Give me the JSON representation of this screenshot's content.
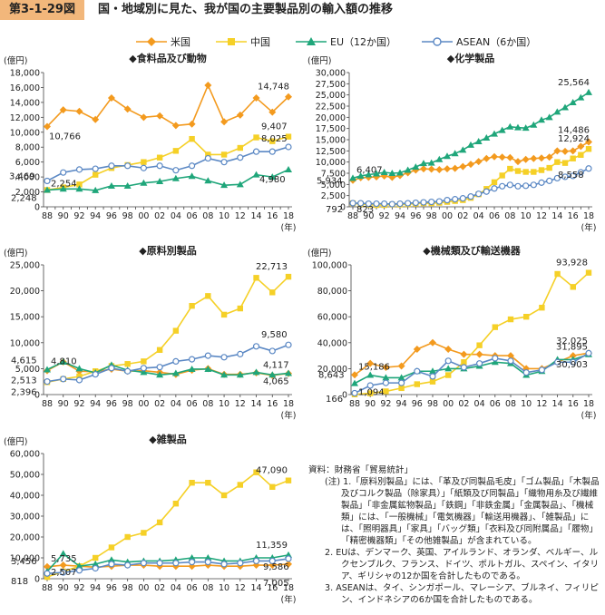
{
  "figure": {
    "number": "第3-1-29図",
    "title": "国・地域別に見た、我が国の主要製品別の輸入額の推移"
  },
  "legend": [
    {
      "name": "米国",
      "color": "#f39a1e",
      "marker": "diamond"
    },
    {
      "name": "中国",
      "color": "#f5d027",
      "marker": "square"
    },
    {
      "name": "EU（12か国）",
      "color": "#1fa67a",
      "marker": "triangle"
    },
    {
      "name": "ASEAN（6か国）",
      "color": "#5b88c4",
      "marker": "circle"
    }
  ],
  "chart_data": [
    {
      "type": "line",
      "title": "◆食料品及び動物",
      "ylabel": "(億円)",
      "xlabel": "(年)",
      "categories": [
        "88",
        "89",
        "90",
        "91",
        "92",
        "93",
        "94",
        "95",
        "96",
        "97",
        "98",
        "99",
        "00",
        "01",
        "02",
        "03",
        "04",
        "05",
        "06",
        "07",
        "08",
        "09",
        "10",
        "11",
        "12",
        "13",
        "14",
        "15",
        "16",
        "17",
        "18"
      ],
      "tick_labels": [
        "88",
        "90",
        "92",
        "94",
        "96",
        "98",
        "00",
        "02",
        "04",
        "06",
        "08",
        "10",
        "12",
        "14",
        "16",
        "18"
      ],
      "ylim": [
        0,
        18000
      ],
      "yticks": [
        0,
        2000,
        4000,
        6000,
        8000,
        10000,
        12000,
        14000,
        16000,
        18000
      ],
      "series": [
        {
          "name": "米国",
          "values": [
            10766,
            null,
            13000,
            null,
            12800,
            null,
            11700,
            null,
            14600,
            null,
            13100,
            null,
            12000,
            null,
            12200,
            null,
            10900,
            null,
            11100,
            null,
            16300,
            null,
            11400,
            null,
            12300,
            null,
            14600,
            null,
            12700,
            null,
            14748
          ]
        },
        {
          "name": "中国",
          "values": [
            2254,
            null,
            2600,
            null,
            3000,
            null,
            4300,
            null,
            5200,
            null,
            5600,
            null,
            6000,
            null,
            6600,
            null,
            7500,
            null,
            9100,
            null,
            7000,
            null,
            7000,
            null,
            7900,
            null,
            9300,
            null,
            8800,
            null,
            9407
          ]
        },
        {
          "name": "EU（12か国）",
          "values": [
            2248,
            null,
            2400,
            null,
            2400,
            null,
            2200,
            null,
            2800,
            null,
            2800,
            null,
            3200,
            null,
            3400,
            null,
            3800,
            null,
            4100,
            null,
            3500,
            null,
            2900,
            null,
            3000,
            null,
            4300,
            null,
            4000,
            null,
            4980
          ]
        },
        {
          "name": "ASEAN（6か国）",
          "values": [
            3469,
            null,
            4600,
            null,
            5000,
            null,
            5100,
            null,
            5500,
            null,
            5500,
            null,
            5200,
            null,
            5500,
            null,
            4900,
            null,
            5500,
            null,
            6500,
            null,
            6000,
            null,
            6600,
            null,
            7400,
            null,
            7400,
            null,
            8025
          ]
        }
      ],
      "labels": [
        {
          "text": "10,766",
          "series": 0,
          "idx": 0
        },
        {
          "text": "14,748",
          "series": 0,
          "idx": 30
        },
        {
          "text": "9,407",
          "series": 1,
          "idx": 30
        },
        {
          "text": "2,254",
          "series": 1,
          "idx": 0
        },
        {
          "text": "3,469",
          "series": 3,
          "idx": 0
        },
        {
          "text": "2,248",
          "series": 2,
          "idx": 0
        },
        {
          "text": "8,025",
          "series": 3,
          "idx": 30
        },
        {
          "text": "4,980",
          "series": 2,
          "idx": 30
        }
      ]
    },
    {
      "type": "line",
      "title": "◆化学製品",
      "ylabel": "(億円)",
      "xlabel": "(年)",
      "categories": [
        "88",
        "89",
        "90",
        "91",
        "92",
        "93",
        "94",
        "95",
        "96",
        "97",
        "98",
        "99",
        "00",
        "01",
        "02",
        "03",
        "04",
        "05",
        "06",
        "07",
        "08",
        "09",
        "10",
        "11",
        "12",
        "13",
        "14",
        "15",
        "16",
        "17",
        "18"
      ],
      "tick_labels": [
        "88",
        "90",
        "92",
        "94",
        "96",
        "98",
        "00",
        "02",
        "04",
        "06",
        "08",
        "10",
        "12",
        "14",
        "16",
        "18"
      ],
      "ylim": [
        0,
        30000
      ],
      "yticks": [
        0,
        2500,
        5000,
        7500,
        10000,
        12500,
        15000,
        17500,
        20000,
        22500,
        25000,
        27500,
        30000
      ],
      "series": [
        {
          "name": "米国",
          "values": [
            5934,
            6500,
            6600,
            6700,
            6900,
            6600,
            7000,
            7600,
            8200,
            8500,
            8400,
            8300,
            8500,
            8600,
            9000,
            9500,
            10100,
            10800,
            11200,
            11100,
            11000,
            10100,
            10600,
            10800,
            10900,
            11100,
            12500,
            12400,
            12500,
            13500,
            14486
          ]
        },
        {
          "name": "中国",
          "values": [
            792,
            600,
            500,
            400,
            400,
            500,
            500,
            600,
            700,
            800,
            800,
            900,
            1100,
            1300,
            1500,
            2000,
            2800,
            4000,
            5500,
            7000,
            8500,
            8000,
            7800,
            7800,
            8200,
            8700,
            10000,
            9800,
            10800,
            11600,
            12924
          ]
        },
        {
          "name": "EU（12か国）",
          "values": [
            6407,
            6900,
            7200,
            7400,
            7700,
            7500,
            7600,
            8200,
            8900,
            9700,
            9800,
            10600,
            11300,
            11900,
            12700,
            13800,
            14600,
            15400,
            16300,
            17100,
            17900,
            17700,
            17600,
            18300,
            19400,
            20000,
            21200,
            22200,
            23300,
            24400,
            25564
          ]
        },
        {
          "name": "ASEAN（6か国）",
          "values": [
            823,
            800,
            700,
            700,
            700,
            600,
            700,
            800,
            900,
            1000,
            1100,
            1200,
            1500,
            1700,
            1900,
            2300,
            2900,
            3400,
            4100,
            4600,
            4900,
            4600,
            4700,
            4900,
            5400,
            5800,
            6400,
            6700,
            6900,
            7700,
            8558
          ]
        }
      ],
      "labels": [
        {
          "text": "25,564",
          "series": 2,
          "idx": 30
        },
        {
          "text": "14,486",
          "series": 0,
          "idx": 30
        },
        {
          "text": "12,924",
          "series": 1,
          "idx": 30
        },
        {
          "text": "8,558",
          "series": 3,
          "idx": 30
        },
        {
          "text": "6,407",
          "series": 2,
          "idx": 0
        },
        {
          "text": "5,934",
          "series": 0,
          "idx": 0
        },
        {
          "text": "792",
          "series": 1,
          "idx": 0
        },
        {
          "text": "823",
          "series": 3,
          "idx": 0
        }
      ]
    },
    {
      "type": "line",
      "title": "◆原料別製品",
      "ylabel": "(億円)",
      "xlabel": "(年)",
      "categories": [
        "88",
        "90",
        "92",
        "94",
        "96",
        "98",
        "00",
        "02",
        "04",
        "06",
        "08",
        "10",
        "12",
        "14",
        "16",
        "18"
      ],
      "tick_labels": [
        "88",
        "90",
        "92",
        "94",
        "96",
        "98",
        "00",
        "02",
        "04",
        "06",
        "08",
        "10",
        "12",
        "14",
        "16",
        "18"
      ],
      "ylim": [
        0,
        25000
      ],
      "yticks": [
        0,
        5000,
        10000,
        15000,
        20000,
        25000
      ],
      "series": [
        {
          "name": "米国",
          "values": [
            4615,
            6300,
            4500,
            4400,
            4900,
            4500,
            4600,
            4300,
            3900,
            4700,
            5000,
            3900,
            3900,
            4200,
            3700,
            4065
          ]
        },
        {
          "name": "中国",
          "values": [
            2396,
            3000,
            3500,
            4500,
            5500,
            5900,
            6400,
            8600,
            12300,
            17100,
            19000,
            15400,
            16600,
            22500,
            19700,
            22713
          ]
        },
        {
          "name": "EU（12か国）",
          "values": [
            4810,
            6300,
            5000,
            4200,
            5700,
            4700,
            4300,
            3800,
            4100,
            4900,
            4900,
            3800,
            3800,
            4300,
            3800,
            4117
          ]
        },
        {
          "name": "ASEAN（6か国）",
          "values": [
            2513,
            3000,
            2800,
            3900,
            5100,
            4500,
            5100,
            5300,
            6400,
            6800,
            7500,
            7200,
            7800,
            9300,
            8400,
            9580
          ]
        }
      ],
      "labels": [
        {
          "text": "22,713",
          "series": 1,
          "idx": 15
        },
        {
          "text": "9,580",
          "series": 3,
          "idx": 15
        },
        {
          "text": "4,117",
          "series": 2,
          "idx": 15
        },
        {
          "text": "4,065",
          "series": 0,
          "idx": 15
        },
        {
          "text": "4,810",
          "series": 2,
          "idx": 0
        },
        {
          "text": "4,615",
          "series": 0,
          "idx": 0
        },
        {
          "text": "2,513",
          "series": 3,
          "idx": 0
        },
        {
          "text": "2,396",
          "series": 1,
          "idx": 0
        }
      ]
    },
    {
      "type": "line",
      "title": "◆機械類及び輸送機器",
      "ylabel": "(億円)",
      "xlabel": "(年)",
      "categories": [
        "88",
        "90",
        "92",
        "94",
        "96",
        "98",
        "00",
        "02",
        "04",
        "06",
        "08",
        "10",
        "12",
        "14",
        "16",
        "18"
      ],
      "tick_labels": [
        "88",
        "90",
        "92",
        "94",
        "96",
        "98",
        "00",
        "02",
        "04",
        "06",
        "08",
        "10",
        "12",
        "14",
        "16",
        "18"
      ],
      "ylim": [
        0,
        100000
      ],
      "yticks": [
        0,
        20000,
        40000,
        60000,
        80000,
        100000
      ],
      "series": [
        {
          "name": "米国",
          "values": [
            15186,
            24000,
            21000,
            22000,
            35000,
            40000,
            35000,
            31000,
            31000,
            30000,
            30000,
            20000,
            20000,
            25000,
            30000,
            32025
          ]
        },
        {
          "name": "中国",
          "values": [
            166,
            1000,
            2500,
            5000,
            8000,
            10000,
            15000,
            25000,
            38000,
            52000,
            58000,
            60000,
            67000,
            93000,
            83000,
            93928
          ]
        },
        {
          "name": "EU（12か国）",
          "values": [
            8643,
            15000,
            13000,
            13000,
            18000,
            18000,
            20000,
            20000,
            22000,
            25000,
            24000,
            15000,
            18000,
            27000,
            27000,
            30903
          ]
        },
        {
          "name": "ASEAN（6か国）",
          "values": [
            1094,
            7000,
            9000,
            9000,
            18000,
            14000,
            26000,
            21000,
            24000,
            28000,
            26000,
            17000,
            19000,
            25000,
            25000,
            31895
          ]
        }
      ],
      "labels": [
        {
          "text": "93,928",
          "series": 1,
          "idx": 15
        },
        {
          "text": "32,025",
          "series": 0,
          "idx": 15
        },
        {
          "text": "31,895",
          "series": 3,
          "idx": 15
        },
        {
          "text": "30,903",
          "series": 2,
          "idx": 15
        },
        {
          "text": "15,186",
          "series": 0,
          "idx": 0
        },
        {
          "text": "8,643",
          "series": 2,
          "idx": 0
        },
        {
          "text": "1,094",
          "series": 3,
          "idx": 0
        },
        {
          "text": "166",
          "series": 1,
          "idx": 0
        }
      ]
    },
    {
      "type": "line",
      "title": "◆雑製品",
      "ylabel": "(億円)",
      "xlabel": "(年)",
      "categories": [
        "88",
        "90",
        "92",
        "94",
        "96",
        "98",
        "00",
        "02",
        "04",
        "06",
        "08",
        "10",
        "12",
        "14",
        "16",
        "18"
      ],
      "tick_labels": [
        "88",
        "90",
        "92",
        "94",
        "96",
        "98",
        "00",
        "02",
        "04",
        "06",
        "08",
        "10",
        "12",
        "14",
        "16",
        "18"
      ],
      "ylim": [
        0,
        60000
      ],
      "yticks": [
        0,
        10000,
        20000,
        30000,
        40000,
        50000,
        60000
      ],
      "series": [
        {
          "name": "米国",
          "values": [
            5735,
            6500,
            6000,
            5500,
            6000,
            6500,
            6500,
            6000,
            6000,
            6000,
            6500,
            6000,
            6000,
            6500,
            6500,
            7005
          ]
        },
        {
          "name": "中国",
          "values": [
            818,
            3500,
            6000,
            10000,
            15000,
            20000,
            22000,
            27000,
            36000,
            46000,
            46000,
            40000,
            45000,
            51000,
            44000,
            47090
          ]
        },
        {
          "name": "EU（12か国）",
          "values": [
            3456,
            12000,
            6000,
            7000,
            9000,
            8000,
            8500,
            8500,
            9000,
            10000,
            10000,
            8500,
            8500,
            10000,
            10000,
            11359
          ]
        },
        {
          "name": "ASEAN（6か国）",
          "values": [
            2507,
            3000,
            4000,
            5000,
            7000,
            6500,
            7500,
            7500,
            7500,
            8000,
            8000,
            7000,
            7500,
            8500,
            8500,
            9586
          ]
        }
      ],
      "labels": [
        {
          "text": "47,090",
          "series": 1,
          "idx": 15
        },
        {
          "text": "11,359",
          "series": 2,
          "idx": 15
        },
        {
          "text": "9,586",
          "series": 3,
          "idx": 15
        },
        {
          "text": "7,005",
          "series": 0,
          "idx": 15
        },
        {
          "text": "5,735",
          "series": 0,
          "idx": 0
        },
        {
          "text": "3,456",
          "series": 2,
          "idx": 0
        },
        {
          "text": "2,507",
          "series": 3,
          "idx": 0
        },
        {
          "text": "818",
          "series": 1,
          "idx": 0
        }
      ]
    }
  ],
  "notes": {
    "source": "資料：財務省「貿易統計」",
    "lines": [
      "(注) 1.「原料別製品」には、「革及び同製品毛皮」「ゴム製品」「木製品及びコルク製品（除家具）」「紙類及び同製品」「織物用糸及び繊維製品」「非金属鉱物製品」「鉄鋼」「非鉄金属」「金属製品」、「機械類」には、「一般機械」「電気機器」「輸送用機器」、「雑製品」には、「照明器具」「家具」「バッグ類」「衣料及び同附属品」「履物」「精密機器類」「その他雑製品」が含まれている。",
      "2. EUは、デンマーク、英国、アイルランド、オランダ、ベルギー、ルクセンブルク、フランス、ドイツ、ポルトガル、スペイン、イタリア、ギリシャの12か国を合計したものである。",
      "3. ASEANは、タイ、シンガポール、マレーシア、ブルネイ、フィリピン、インドネシアの6か国を合計したものである。"
    ]
  }
}
